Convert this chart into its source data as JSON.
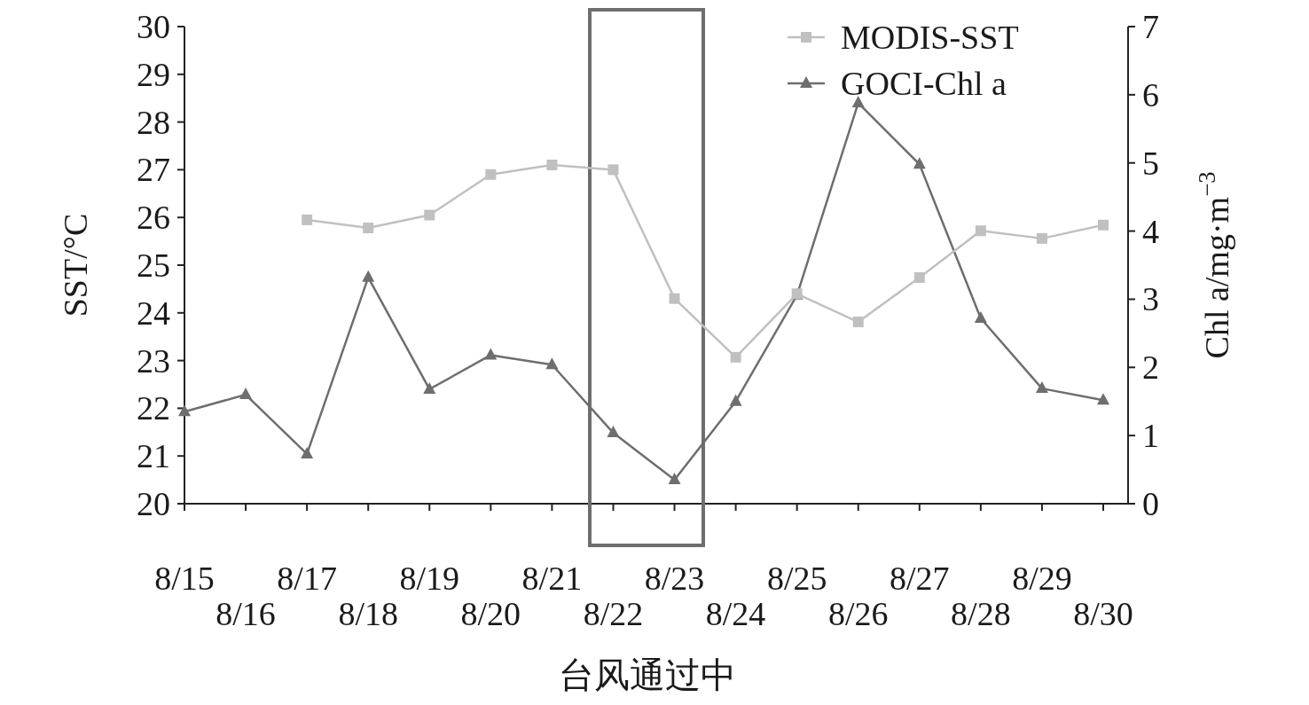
{
  "chart_data": {
    "type": "line",
    "categories": [
      "8/15",
      "8/16",
      "8/17",
      "8/18",
      "8/19",
      "8/20",
      "8/21",
      "8/22",
      "8/23",
      "8/24",
      "8/25",
      "8/26",
      "8/27",
      "8/28",
      "8/29",
      "8/30"
    ],
    "series": [
      {
        "name": "MODIS-SST",
        "color": "#c0c0c0",
        "marker": "square",
        "values": [
          null,
          null,
          25.95,
          25.78,
          26.05,
          26.9,
          27.1,
          27.0,
          24.3,
          23.07,
          24.4,
          23.81,
          24.74,
          25.72,
          25.56,
          25.84
        ]
      },
      {
        "name": "GOCI-Chl a",
        "color": "#6e6e6e",
        "marker": "triangle",
        "axis": "y2",
        "values": [
          1.35,
          1.6,
          0.73,
          3.32,
          1.68,
          2.18,
          2.04,
          1.04,
          0.35,
          1.5,
          3.06,
          5.88,
          4.98,
          2.72,
          1.69,
          1.52
        ]
      }
    ],
    "xlabel": "台风通过中",
    "ylabel": "SST/°C",
    "y2label": "Chl a/mg·m$^{−3}$",
    "ylim": [
      20,
      30
    ],
    "yticks": [
      20,
      21,
      22,
      23,
      24,
      25,
      26,
      27,
      28,
      29,
      30
    ],
    "y2lim": [
      0,
      7
    ],
    "y2ticks": [
      0,
      1,
      2,
      3,
      4,
      5,
      6,
      7
    ],
    "grid": false,
    "legend": "top right",
    "line_style": "solid"
  }
}
